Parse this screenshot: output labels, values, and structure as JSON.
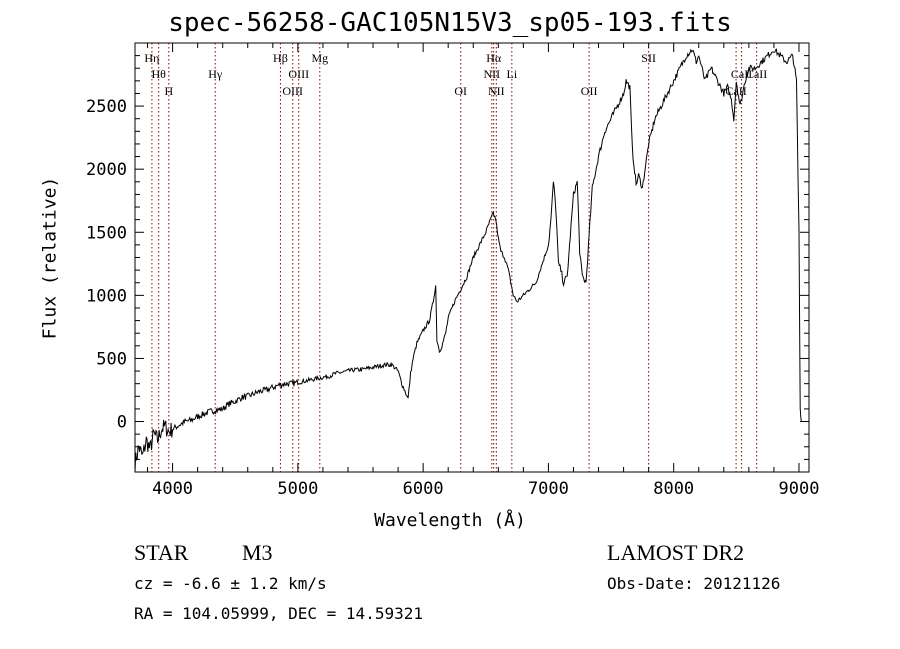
{
  "chart_data": {
    "type": "line",
    "title": "spec-56258-GAC105N15V3_sp05-193.fits",
    "xlabel": "Wavelength (Å)",
    "ylabel": "Flux (relative)",
    "xlim": [
      3700,
      9080
    ],
    "ylim": [
      -400,
      3000
    ],
    "xticks": [
      4000,
      5000,
      6000,
      7000,
      8000,
      9000
    ],
    "yticks": [
      0,
      500,
      1000,
      1500,
      2000,
      2500
    ],
    "series": [
      {
        "x": [
          3700,
          3730,
          3760,
          3790,
          3820,
          3850,
          3880,
          3910,
          3940,
          3970,
          4000,
          4050,
          4100,
          4150,
          4200,
          4250,
          4300,
          4350,
          4400,
          4450,
          4500,
          4550,
          4600,
          4650,
          4700,
          4750,
          4800,
          4850,
          4900,
          4950,
          5000,
          5050,
          5100,
          5150,
          5200,
          5250,
          5300,
          5350,
          5400,
          5450,
          5500,
          5550,
          5600,
          5650,
          5700,
          5750,
          5800,
          5830,
          5860,
          5880,
          5900,
          5920,
          5950,
          6000,
          6050,
          6080,
          6100,
          6110,
          6130,
          6150,
          6180,
          6200,
          6250,
          6300,
          6350,
          6400,
          6450,
          6500,
          6530,
          6560,
          6580,
          6600,
          6620,
          6650,
          6680,
          6700,
          6720,
          6750,
          6800,
          6850,
          6900,
          6950,
          7000,
          7020,
          7040,
          7060,
          7080,
          7100,
          7120,
          7150,
          7200,
          7230,
          7250,
          7270,
          7300,
          7350,
          7400,
          7450,
          7500,
          7550,
          7600,
          7620,
          7650,
          7670,
          7700,
          7720,
          7750,
          7800,
          7850,
          7900,
          7950,
          8000,
          8050,
          8100,
          8150,
          8180,
          8200,
          8250,
          8300,
          8350,
          8400,
          8430,
          8460,
          8480,
          8500,
          8530,
          8550,
          8570,
          8600,
          8650,
          8700,
          8750,
          8800,
          8850,
          8900,
          8950,
          8980,
          9000,
          9010,
          9020
        ],
        "y": [
          -330,
          -200,
          -280,
          -150,
          -220,
          -100,
          -150,
          -60,
          -40,
          -80,
          -60,
          -30,
          0,
          10,
          40,
          60,
          80,
          90,
          100,
          140,
          160,
          190,
          200,
          220,
          240,
          250,
          270,
          290,
          300,
          300,
          310,
          320,
          330,
          340,
          350,
          360,
          380,
          390,
          400,
          410,
          410,
          420,
          430,
          440,
          450,
          450,
          400,
          300,
          230,
          180,
          380,
          500,
          620,
          720,
          800,
          950,
          1080,
          650,
          560,
          600,
          700,
          820,
          950,
          1050,
          1150,
          1300,
          1400,
          1500,
          1580,
          1650,
          1600,
          1450,
          1350,
          1300,
          1200,
          1100,
          1000,
          950,
          1000,
          1050,
          1100,
          1250,
          1400,
          1600,
          1900,
          1680,
          1250,
          1200,
          1100,
          1150,
          1800,
          1900,
          1350,
          1150,
          1100,
          1850,
          2100,
          2300,
          2400,
          2500,
          2600,
          2700,
          2650,
          2150,
          1880,
          1950,
          1850,
          2200,
          2400,
          2500,
          2600,
          2700,
          2800,
          2900,
          2950,
          2850,
          2900,
          2700,
          2800,
          2700,
          2600,
          2650,
          2550,
          2400,
          2700,
          2500,
          2600,
          2700,
          2800,
          2800,
          2850,
          2900,
          2950,
          2900,
          2850,
          2900,
          2700,
          1500,
          100,
          0
        ]
      }
    ],
    "lines": [
      {
        "label": "Hη",
        "wavelength": 3835,
        "row": 0
      },
      {
        "label": "Hθ",
        "wavelength": 3889,
        "row": 1
      },
      {
        "label": "H",
        "wavelength": 3970,
        "row": 2
      },
      {
        "label": "Hγ",
        "wavelength": 4340,
        "row": 1
      },
      {
        "label": "Hβ",
        "wavelength": 4861,
        "row": 0
      },
      {
        "label": "OIII",
        "wavelength": 4959,
        "row": 2
      },
      {
        "label": "OIII",
        "wavelength": 5007,
        "row": 1
      },
      {
        "label": "Mg",
        "wavelength": 5175,
        "row": 0
      },
      {
        "label": "OI",
        "wavelength": 6300,
        "row": 2
      },
      {
        "label": "Hα",
        "wavelength": 6563,
        "row": 0
      },
      {
        "label": "NII",
        "wavelength": 6548,
        "row": 1
      },
      {
        "label": "NII",
        "wavelength": 6584,
        "row": 2
      },
      {
        "label": "Li",
        "wavelength": 6708,
        "row": 1
      },
      {
        "label": "OII",
        "wavelength": 7325,
        "row": 2
      },
      {
        "label": "SII",
        "wavelength": 7800,
        "row": 0
      },
      {
        "label": "CaII",
        "wavelength": 8498,
        "row": 2
      },
      {
        "label": "CaII",
        "wavelength": 8542,
        "row": 1
      },
      {
        "label": "CaII",
        "wavelength": 8662,
        "row": 1
      }
    ],
    "grid": false,
    "line_color": "#000000",
    "marker_color": "#8b0000"
  },
  "info": {
    "object_class": "STAR",
    "subclass": "M3",
    "survey": "LAMOST DR2",
    "redshift_text": "cz = -6.6 ± 1.2 km/s",
    "obs_date": "Obs-Date: 20121126",
    "coords": "RA = 104.05999, DEC =  14.59321"
  }
}
